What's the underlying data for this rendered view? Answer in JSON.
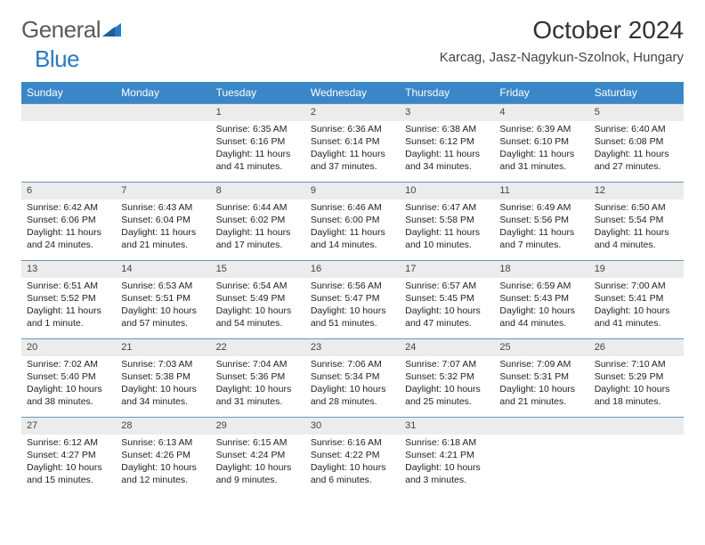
{
  "brand": {
    "part1": "General",
    "part2": "Blue"
  },
  "title": "October 2024",
  "location": "Karcag, Jasz-Nagykun-Szolnok, Hungary",
  "colors": {
    "header_bg": "#3a87c8",
    "header_text": "#ffffff",
    "row_border": "#6a96b8",
    "daynum_bg": "#ececec",
    "page_bg": "#ffffff",
    "brand_blue": "#2a7bbf",
    "brand_grey": "#5a5a5a",
    "text": "#222222"
  },
  "typography": {
    "title_fontsize": 28,
    "location_fontsize": 15,
    "dayhead_fontsize": 12,
    "cell_fontsize": 10.5,
    "logo_fontsize": 26
  },
  "day_headers": [
    "Sunday",
    "Monday",
    "Tuesday",
    "Wednesday",
    "Thursday",
    "Friday",
    "Saturday"
  ],
  "weeks": [
    [
      null,
      null,
      {
        "n": "1",
        "sr": "Sunrise: 6:35 AM",
        "ss": "Sunset: 6:16 PM",
        "dl": "Daylight: 11 hours and 41 minutes."
      },
      {
        "n": "2",
        "sr": "Sunrise: 6:36 AM",
        "ss": "Sunset: 6:14 PM",
        "dl": "Daylight: 11 hours and 37 minutes."
      },
      {
        "n": "3",
        "sr": "Sunrise: 6:38 AM",
        "ss": "Sunset: 6:12 PM",
        "dl": "Daylight: 11 hours and 34 minutes."
      },
      {
        "n": "4",
        "sr": "Sunrise: 6:39 AM",
        "ss": "Sunset: 6:10 PM",
        "dl": "Daylight: 11 hours and 31 minutes."
      },
      {
        "n": "5",
        "sr": "Sunrise: 6:40 AM",
        "ss": "Sunset: 6:08 PM",
        "dl": "Daylight: 11 hours and 27 minutes."
      }
    ],
    [
      {
        "n": "6",
        "sr": "Sunrise: 6:42 AM",
        "ss": "Sunset: 6:06 PM",
        "dl": "Daylight: 11 hours and 24 minutes."
      },
      {
        "n": "7",
        "sr": "Sunrise: 6:43 AM",
        "ss": "Sunset: 6:04 PM",
        "dl": "Daylight: 11 hours and 21 minutes."
      },
      {
        "n": "8",
        "sr": "Sunrise: 6:44 AM",
        "ss": "Sunset: 6:02 PM",
        "dl": "Daylight: 11 hours and 17 minutes."
      },
      {
        "n": "9",
        "sr": "Sunrise: 6:46 AM",
        "ss": "Sunset: 6:00 PM",
        "dl": "Daylight: 11 hours and 14 minutes."
      },
      {
        "n": "10",
        "sr": "Sunrise: 6:47 AM",
        "ss": "Sunset: 5:58 PM",
        "dl": "Daylight: 11 hours and 10 minutes."
      },
      {
        "n": "11",
        "sr": "Sunrise: 6:49 AM",
        "ss": "Sunset: 5:56 PM",
        "dl": "Daylight: 11 hours and 7 minutes."
      },
      {
        "n": "12",
        "sr": "Sunrise: 6:50 AM",
        "ss": "Sunset: 5:54 PM",
        "dl": "Daylight: 11 hours and 4 minutes."
      }
    ],
    [
      {
        "n": "13",
        "sr": "Sunrise: 6:51 AM",
        "ss": "Sunset: 5:52 PM",
        "dl": "Daylight: 11 hours and 1 minute."
      },
      {
        "n": "14",
        "sr": "Sunrise: 6:53 AM",
        "ss": "Sunset: 5:51 PM",
        "dl": "Daylight: 10 hours and 57 minutes."
      },
      {
        "n": "15",
        "sr": "Sunrise: 6:54 AM",
        "ss": "Sunset: 5:49 PM",
        "dl": "Daylight: 10 hours and 54 minutes."
      },
      {
        "n": "16",
        "sr": "Sunrise: 6:56 AM",
        "ss": "Sunset: 5:47 PM",
        "dl": "Daylight: 10 hours and 51 minutes."
      },
      {
        "n": "17",
        "sr": "Sunrise: 6:57 AM",
        "ss": "Sunset: 5:45 PM",
        "dl": "Daylight: 10 hours and 47 minutes."
      },
      {
        "n": "18",
        "sr": "Sunrise: 6:59 AM",
        "ss": "Sunset: 5:43 PM",
        "dl": "Daylight: 10 hours and 44 minutes."
      },
      {
        "n": "19",
        "sr": "Sunrise: 7:00 AM",
        "ss": "Sunset: 5:41 PM",
        "dl": "Daylight: 10 hours and 41 minutes."
      }
    ],
    [
      {
        "n": "20",
        "sr": "Sunrise: 7:02 AM",
        "ss": "Sunset: 5:40 PM",
        "dl": "Daylight: 10 hours and 38 minutes."
      },
      {
        "n": "21",
        "sr": "Sunrise: 7:03 AM",
        "ss": "Sunset: 5:38 PM",
        "dl": "Daylight: 10 hours and 34 minutes."
      },
      {
        "n": "22",
        "sr": "Sunrise: 7:04 AM",
        "ss": "Sunset: 5:36 PM",
        "dl": "Daylight: 10 hours and 31 minutes."
      },
      {
        "n": "23",
        "sr": "Sunrise: 7:06 AM",
        "ss": "Sunset: 5:34 PM",
        "dl": "Daylight: 10 hours and 28 minutes."
      },
      {
        "n": "24",
        "sr": "Sunrise: 7:07 AM",
        "ss": "Sunset: 5:32 PM",
        "dl": "Daylight: 10 hours and 25 minutes."
      },
      {
        "n": "25",
        "sr": "Sunrise: 7:09 AM",
        "ss": "Sunset: 5:31 PM",
        "dl": "Daylight: 10 hours and 21 minutes."
      },
      {
        "n": "26",
        "sr": "Sunrise: 7:10 AM",
        "ss": "Sunset: 5:29 PM",
        "dl": "Daylight: 10 hours and 18 minutes."
      }
    ],
    [
      {
        "n": "27",
        "sr": "Sunrise: 6:12 AM",
        "ss": "Sunset: 4:27 PM",
        "dl": "Daylight: 10 hours and 15 minutes."
      },
      {
        "n": "28",
        "sr": "Sunrise: 6:13 AM",
        "ss": "Sunset: 4:26 PM",
        "dl": "Daylight: 10 hours and 12 minutes."
      },
      {
        "n": "29",
        "sr": "Sunrise: 6:15 AM",
        "ss": "Sunset: 4:24 PM",
        "dl": "Daylight: 10 hours and 9 minutes."
      },
      {
        "n": "30",
        "sr": "Sunrise: 6:16 AM",
        "ss": "Sunset: 4:22 PM",
        "dl": "Daylight: 10 hours and 6 minutes."
      },
      {
        "n": "31",
        "sr": "Sunrise: 6:18 AM",
        "ss": "Sunset: 4:21 PM",
        "dl": "Daylight: 10 hours and 3 minutes."
      },
      null,
      null
    ]
  ]
}
